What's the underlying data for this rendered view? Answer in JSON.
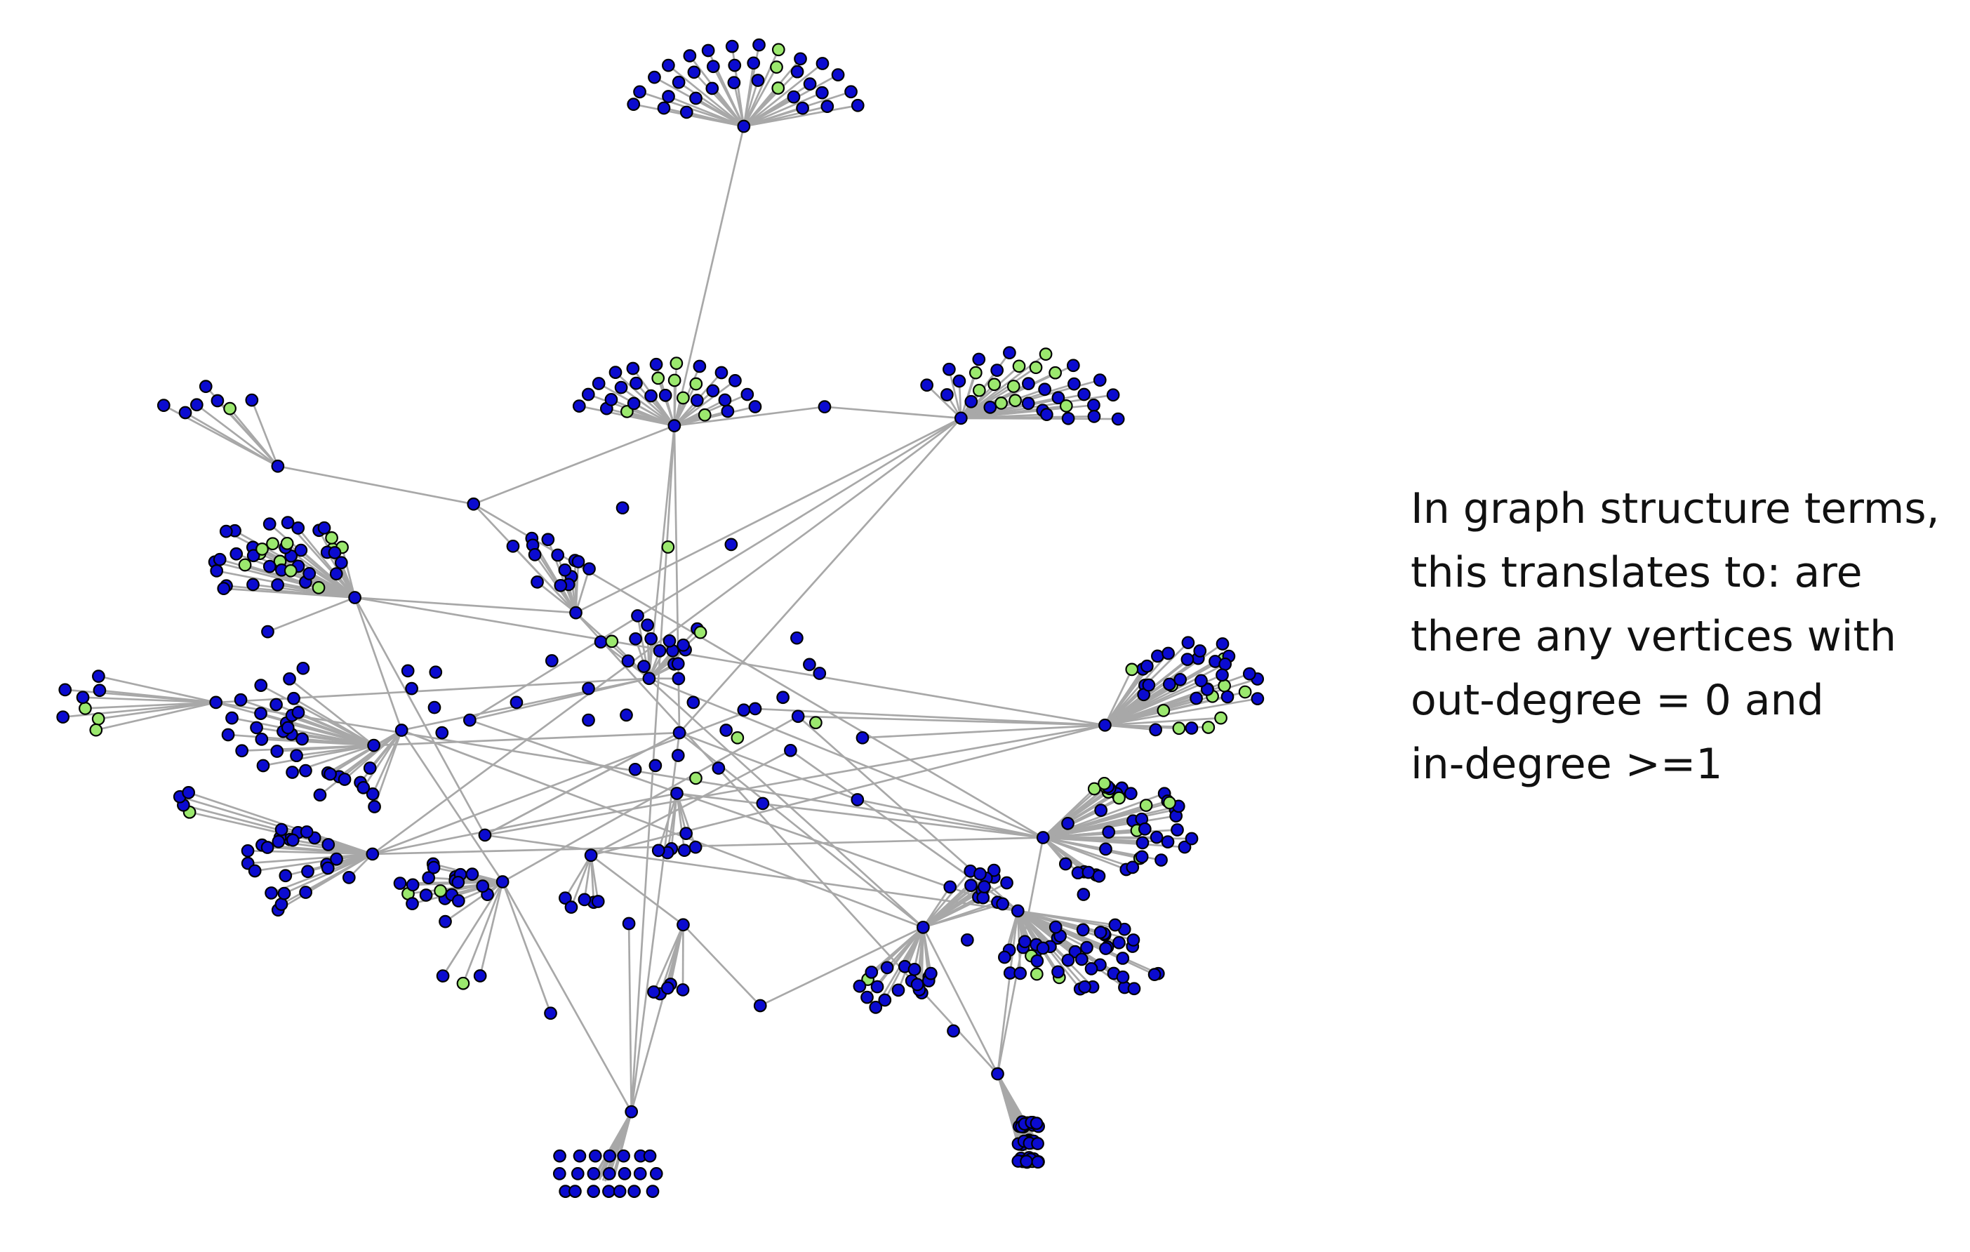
{
  "caption": {
    "lines": [
      "In graph structure terms,",
      "this translates to: are",
      "there any vertices with",
      "out-degree = 0 and",
      "in-degree >=1"
    ]
  },
  "colors": {
    "vertex_blue": "#0b0bd0",
    "vertex_green": "#9be86e",
    "vertex_outline": "#000000",
    "edge": "#a8a8a8",
    "background": "#ffffff"
  }
}
